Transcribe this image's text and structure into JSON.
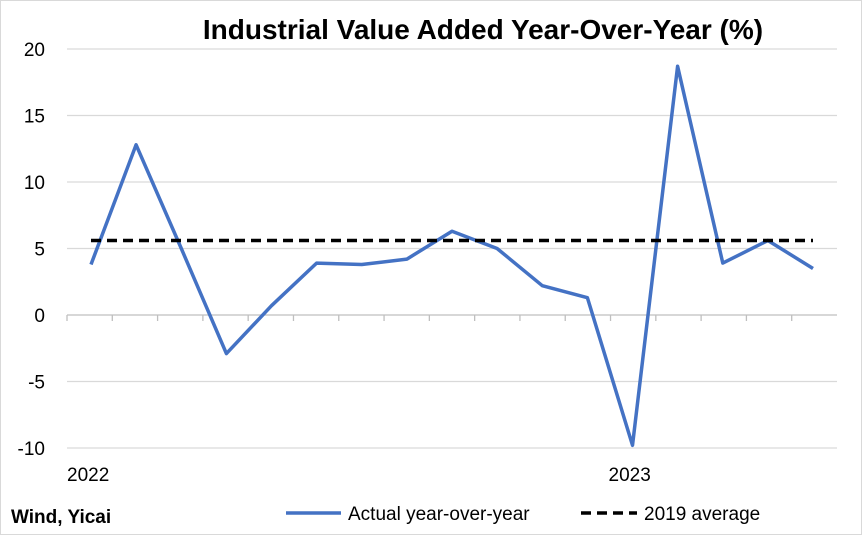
{
  "chart_data": {
    "type": "line",
    "title": "Industrial Value Added Year-Over-Year (%)",
    "xlabel": "",
    "ylabel": "",
    "ylim": [
      -10,
      20
    ],
    "yticks": [
      "20",
      "15",
      "10",
      "5",
      "0",
      "-5",
      "-10"
    ],
    "ytick_values": [
      20,
      15,
      10,
      5,
      0,
      -5,
      -10
    ],
    "x_tick_labels": [
      {
        "index": 0,
        "label": "2022"
      },
      {
        "index": 12,
        "label": "2023"
      }
    ],
    "point_count": 17,
    "grid": true,
    "legend_position": "bottom",
    "series": [
      {
        "name": "Actual year-over-year",
        "color": "#4472C4",
        "style": "solid",
        "values": [
          3.8,
          12.8,
          5.0,
          -2.9,
          0.7,
          3.9,
          3.8,
          4.2,
          6.3,
          5.0,
          2.2,
          1.3,
          -9.8,
          18.7,
          3.9,
          5.6,
          3.5
        ]
      },
      {
        "name": "2019 average",
        "color": "#000000",
        "style": "dashed",
        "values": [
          5.6,
          5.6,
          5.6,
          5.6,
          5.6,
          5.6,
          5.6,
          5.6,
          5.6,
          5.6,
          5.6,
          5.6,
          5.6,
          5.6,
          5.6,
          5.6,
          5.6
        ]
      }
    ],
    "source": "Wind, Yicai"
  }
}
